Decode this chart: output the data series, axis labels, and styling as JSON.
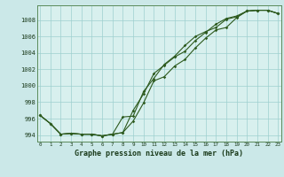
{
  "xlabel": "Graphe pression niveau de la mer (hPa)",
  "background_color": "#cbe8e8",
  "plot_background": "#d8f0ee",
  "grid_color": "#9ecfcf",
  "line_color": "#2d5a1e",
  "x_ticks": [
    0,
    1,
    2,
    3,
    4,
    5,
    6,
    7,
    8,
    9,
    10,
    11,
    12,
    13,
    14,
    15,
    16,
    17,
    18,
    19,
    20,
    21,
    22,
    23
  ],
  "ylim": [
    993.2,
    1009.8
  ],
  "xlim": [
    -0.3,
    23.3
  ],
  "yticks": [
    994,
    996,
    998,
    1000,
    1002,
    1004,
    1006,
    1008
  ],
  "line1": [
    996.4,
    995.4,
    994.1,
    994.2,
    994.1,
    994.1,
    993.9,
    994.1,
    994.3,
    995.7,
    997.9,
    1000.6,
    1001.1,
    1002.4,
    1003.2,
    1004.6,
    1005.8,
    1006.8,
    1007.1,
    1008.3,
    1009.1,
    1009.2,
    1009.2,
    1008.8
  ],
  "line2": [
    996.4,
    995.4,
    994.1,
    994.2,
    994.1,
    994.1,
    993.9,
    994.1,
    994.3,
    997.0,
    999.0,
    1001.5,
    1002.5,
    1003.5,
    1004.2,
    1005.5,
    1006.5,
    1007.5,
    1008.2,
    1008.5,
    1009.1,
    1009.2,
    1009.2,
    1008.8
  ],
  "line3": [
    996.4,
    995.4,
    994.1,
    994.2,
    994.1,
    994.1,
    993.9,
    994.1,
    996.2,
    996.3,
    999.3,
    1000.9,
    1002.6,
    1003.6,
    1004.9,
    1006.0,
    1006.6,
    1007.1,
    1008.1,
    1008.4,
    1009.1,
    1009.2,
    1009.2,
    1008.8
  ]
}
